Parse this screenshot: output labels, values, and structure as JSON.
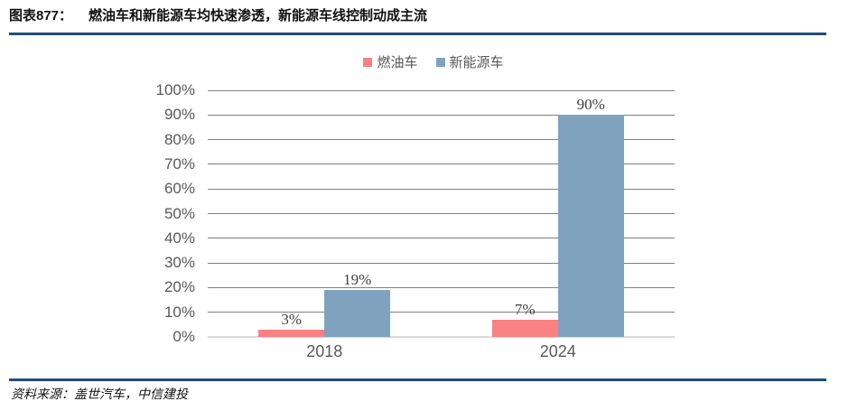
{
  "header": {
    "figure_label": "图表877：",
    "title": "燃油车和新能源车均快速渗透，新能源车线控制动成主流"
  },
  "footer": {
    "source": "资料来源：盖世汽车，中信建投"
  },
  "colors": {
    "rule": "#1f4e79",
    "grid_line": "#7f7f7f",
    "axis_line": "#d9d9d9",
    "tick_label": "#595959",
    "data_label": "#3f3f3f",
    "fuel_series": "#f98181",
    "nev_series": "#7fa3bf"
  },
  "chart_data": {
    "type": "bar",
    "categories": [
      "2018",
      "2024"
    ],
    "series": [
      {
        "name": "燃油车",
        "color": "#f98181",
        "values": [
          3,
          7
        ]
      },
      {
        "name": "新能源车",
        "color": "#7fa3bf",
        "values": [
          19,
          90
        ]
      }
    ],
    "value_suffix": "%",
    "data_labels_shown": [
      "3%",
      "19%",
      "7%",
      "90%"
    ],
    "ylim": [
      0,
      100
    ],
    "ytick_step": 10,
    "ytick_labels": [
      "0%",
      "10%",
      "20%",
      "30%",
      "40%",
      "50%",
      "60%",
      "70%",
      "80%",
      "90%",
      "100%"
    ],
    "grid": true,
    "legend_position": "top-center"
  }
}
